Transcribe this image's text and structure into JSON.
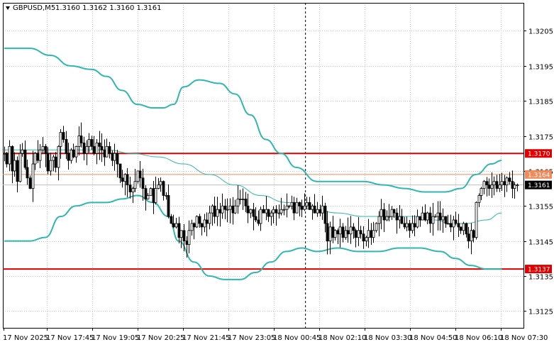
{
  "header": {
    "symbol_timeframe": "GBPUSD,M5",
    "ohlc": "1.3160 1.3162 1.3160 1.3161"
  },
  "colors": {
    "background": "#ffffff",
    "grid": "#c8c8c8",
    "candle": "#000000",
    "band": "#2fb7b0",
    "ma": "#2fb7b0",
    "level_line": "#e00000",
    "level_badge": "#e00000",
    "upper_ref_line": "#f08a5a",
    "upper_ref_badge": "#f08a5a",
    "bid_line": "#c0c0c0",
    "bid_badge": "#000000",
    "vline": "#000000"
  },
  "chart_data": {
    "type": "candlestick",
    "y_ticks": [
      "1.3205",
      "1.3195",
      "1.3185",
      "1.3175",
      "1.3165",
      "1.3155",
      "1.3145",
      "1.3135",
      "1.3125"
    ],
    "x_ticks": [
      "17 Nov 2025",
      "17 Nov 17:45",
      "17 Nov 19:05",
      "17 Nov 20:25",
      "17 Nov 21:45",
      "17 Nov 23:05",
      "18 Nov 00:45",
      "18 Nov 02:10",
      "18 Nov 03:30",
      "18 Nov 04:50",
      "18 Nov 06:10",
      "18 Nov 07:30"
    ],
    "ylim": [
      1.31202,
      1.3213
    ],
    "levels": [
      {
        "label": "1.3170",
        "value": 1.317
      },
      {
        "label": "1.3137",
        "value": 1.3137
      }
    ],
    "ref_line": {
      "label": "1.3164",
      "value": 1.3164
    },
    "bid": {
      "label": "1.3161",
      "value": 1.3161
    },
    "vline_x": 117.5,
    "x_count": 203,
    "candles_close": [
      1.317,
      1.3167,
      1.3172,
      1.3165,
      1.3168,
      1.3162,
      1.317,
      1.3171,
      1.3166,
      1.3163,
      1.316,
      1.3167,
      1.317,
      1.3168,
      1.3171,
      1.3172,
      1.317,
      1.3165,
      1.3168,
      1.3169,
      1.3166,
      1.3172,
      1.3176,
      1.3174,
      1.317,
      1.3168,
      1.3171,
      1.3169,
      1.3172,
      1.3175,
      1.3173,
      1.317,
      1.3172,
      1.3174,
      1.3172,
      1.317,
      1.3173,
      1.3172,
      1.3171,
      1.3169,
      1.3172,
      1.317,
      1.3168,
      1.317,
      1.3167,
      1.3163,
      1.3162,
      1.3164,
      1.3161,
      1.3159,
      1.316,
      1.3162,
      1.3165,
      1.3163,
      1.316,
      1.3157,
      1.3158,
      1.316,
      1.3156,
      1.316,
      1.3161,
      1.3162,
      1.3158,
      1.3158,
      1.3152,
      1.315,
      1.3149,
      1.315,
      1.3146,
      1.3148,
      1.3145,
      1.3144,
      1.3148,
      1.315,
      1.3149,
      1.3152,
      1.315,
      1.3149,
      1.3151,
      1.315,
      1.3153,
      1.3155,
      1.3152,
      1.3154,
      1.3153,
      1.3155,
      1.3154,
      1.3154,
      1.3155,
      1.3153,
      1.3155,
      1.3157,
      1.3157,
      1.3157,
      1.3155,
      1.3153,
      1.3154,
      1.3152,
      1.3151,
      1.315,
      1.3154,
      1.3153,
      1.3154,
      1.3152,
      1.3153,
      1.3154,
      1.3153,
      1.3153,
      1.3154,
      1.3154,
      1.3155,
      1.3155,
      1.3156,
      1.3153,
      1.3156,
      1.3155,
      1.3154,
      1.3155,
      1.3156,
      1.3154,
      1.3155,
      1.3153,
      1.3154,
      1.3153,
      1.3155,
      1.315,
      1.3145,
      1.3149,
      1.3146,
      1.3148,
      1.3147,
      1.3149,
      1.3146,
      1.3148,
      1.3147,
      1.3149,
      1.3148,
      1.3146,
      1.3148,
      1.3147,
      1.3145,
      1.3146,
      1.3148,
      1.3146,
      1.3148,
      1.315,
      1.3152,
      1.3154,
      1.3151,
      1.3152,
      1.3152,
      1.3154,
      1.3153,
      1.3151,
      1.3152,
      1.315,
      1.3149,
      1.315,
      1.3148,
      1.315,
      1.3149,
      1.3152,
      1.3151,
      1.3153,
      1.3151,
      1.3153,
      1.315,
      1.3152,
      1.3152,
      1.3153,
      1.3151,
      1.3152,
      1.315,
      1.315,
      1.3149,
      1.3151,
      1.315,
      1.3149,
      1.3148,
      1.315,
      1.3147,
      1.3145,
      1.3148,
      1.3146,
      1.3156,
      1.3158,
      1.316,
      1.3162,
      1.3161,
      1.316,
      1.3161,
      1.3162,
      1.316,
      1.3161,
      1.3162,
      1.3161,
      1.3163,
      1.3162,
      1.316,
      1.3161,
      1.3161
    ],
    "upper_band": [
      [
        0,
        1.32
      ],
      [
        10,
        1.32
      ],
      [
        18,
        1.3198
      ],
      [
        26,
        1.3195
      ],
      [
        34,
        1.3194
      ],
      [
        40,
        1.3192
      ],
      [
        46,
        1.3188
      ],
      [
        52,
        1.3184
      ],
      [
        58,
        1.3183
      ],
      [
        62,
        1.3183
      ],
      [
        66,
        1.3184
      ],
      [
        70,
        1.3189
      ],
      [
        76,
        1.3191
      ],
      [
        84,
        1.319
      ],
      [
        90,
        1.3187
      ],
      [
        96,
        1.3181
      ],
      [
        102,
        1.3174
      ],
      [
        108,
        1.317
      ],
      [
        114,
        1.3166
      ],
      [
        122,
        1.3162
      ],
      [
        130,
        1.3162
      ],
      [
        140,
        1.3162
      ],
      [
        148,
        1.3161
      ],
      [
        156,
        1.316
      ],
      [
        164,
        1.3159
      ],
      [
        172,
        1.3159
      ],
      [
        178,
        1.316
      ],
      [
        184,
        1.3164
      ],
      [
        190,
        1.3167
      ],
      [
        194,
        1.3168
      ]
    ],
    "lower_band": [
      [
        0,
        1.3145
      ],
      [
        10,
        1.3145
      ],
      [
        16,
        1.3146
      ],
      [
        22,
        1.3152
      ],
      [
        28,
        1.3155
      ],
      [
        34,
        1.3156
      ],
      [
        40,
        1.3156
      ],
      [
        46,
        1.3157
      ],
      [
        52,
        1.3158
      ],
      [
        58,
        1.3156
      ],
      [
        64,
        1.3152
      ],
      [
        68,
        1.3145
      ],
      [
        74,
        1.3139
      ],
      [
        80,
        1.3135
      ],
      [
        86,
        1.3134
      ],
      [
        92,
        1.3134
      ],
      [
        98,
        1.3136
      ],
      [
        104,
        1.3139
      ],
      [
        110,
        1.3142
      ],
      [
        116,
        1.3143
      ],
      [
        122,
        1.3142
      ],
      [
        130,
        1.3143
      ],
      [
        138,
        1.3142
      ],
      [
        146,
        1.3142
      ],
      [
        154,
        1.3143
      ],
      [
        162,
        1.3143
      ],
      [
        170,
        1.3142
      ],
      [
        176,
        1.314
      ],
      [
        182,
        1.3138
      ],
      [
        188,
        1.3137
      ],
      [
        194,
        1.3137
      ]
    ],
    "middle_line": [
      [
        0,
        1.3171
      ],
      [
        20,
        1.3171
      ],
      [
        40,
        1.3171
      ],
      [
        50,
        1.317
      ],
      [
        60,
        1.3169
      ],
      [
        70,
        1.3167
      ],
      [
        80,
        1.3164
      ],
      [
        90,
        1.3161
      ],
      [
        100,
        1.3158
      ],
      [
        110,
        1.3156
      ],
      [
        120,
        1.3154
      ],
      [
        130,
        1.3153
      ],
      [
        140,
        1.3152
      ],
      [
        150,
        1.3152
      ],
      [
        160,
        1.3152
      ],
      [
        168,
        1.3151
      ],
      [
        174,
        1.315
      ],
      [
        180,
        1.315
      ],
      [
        188,
        1.3151
      ],
      [
        194,
        1.3153
      ]
    ]
  }
}
